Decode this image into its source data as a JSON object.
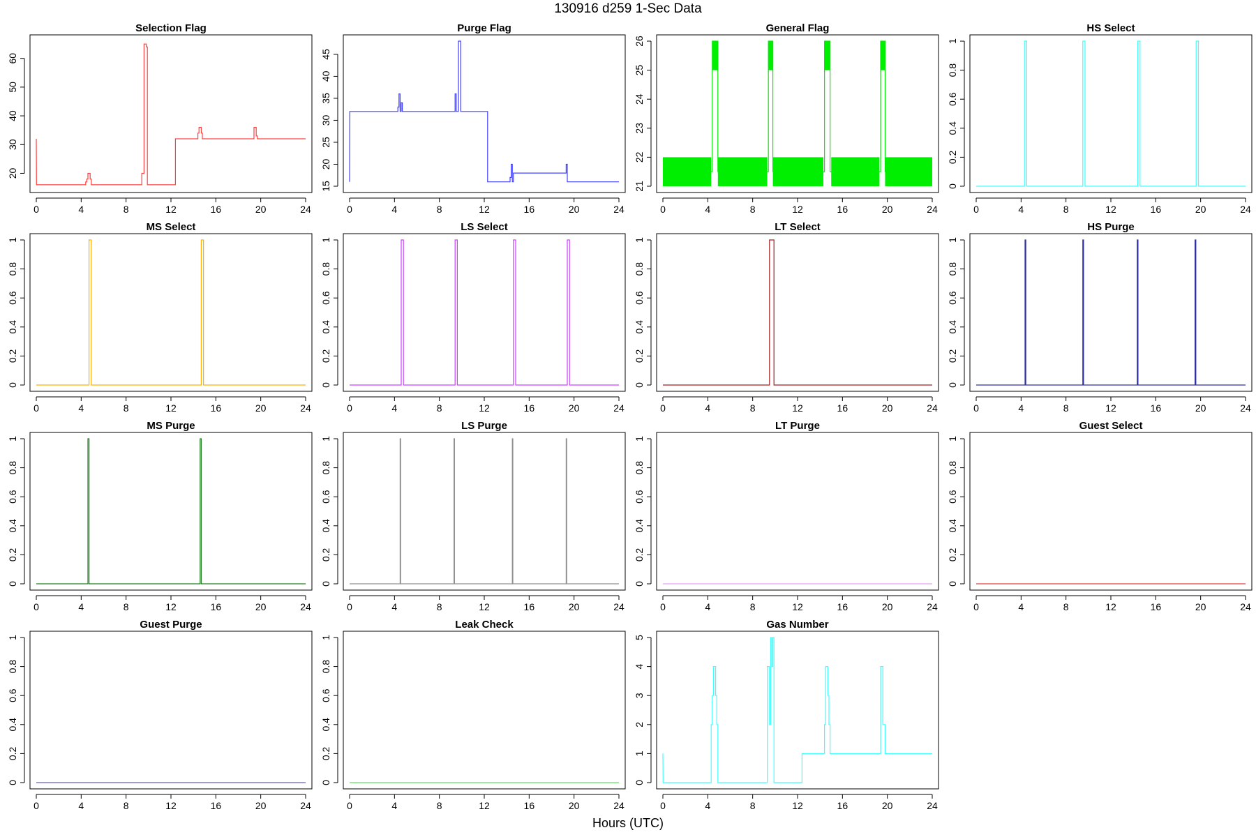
{
  "title": "130916   d259   1-Sec Data",
  "xlabel": "Hours (UTC)",
  "chart_data": [
    {
      "type": "line",
      "title": "Selection Flag",
      "color": "#ff4040",
      "xlim": [
        0,
        24
      ],
      "ylim": [
        15.5,
        66
      ],
      "xticks": [
        0,
        4,
        8,
        12,
        16,
        20,
        24
      ],
      "yticks": [
        20,
        30,
        40,
        50,
        60
      ],
      "x": [
        0,
        0,
        0.02,
        4.4,
        4.4,
        4.5,
        4.5,
        4.6,
        4.6,
        4.8,
        4.8,
        4.9,
        4.9,
        9.4,
        9.4,
        9.6,
        9.6,
        9.8,
        9.8,
        9.9,
        9.9,
        12.4,
        12.4,
        14.4,
        14.4,
        14.5,
        14.5,
        14.7,
        14.7,
        14.8,
        14.8,
        19.4,
        19.4,
        19.6,
        19.6,
        19.7,
        19.7,
        24
      ],
      "y": [
        32,
        32,
        16,
        16,
        17,
        17,
        18,
        18,
        20,
        20,
        18,
        18,
        16,
        16,
        20,
        20,
        65,
        65,
        64,
        64,
        16,
        16,
        32,
        32,
        34,
        34,
        36,
        36,
        34,
        34,
        32,
        32,
        36,
        36,
        33,
        33,
        32,
        32
      ]
    },
    {
      "type": "line",
      "title": "Purge Flag",
      "color": "#4040ff",
      "xlim": [
        0,
        24
      ],
      "ylim": [
        15,
        48
      ],
      "xticks": [
        0,
        4,
        8,
        12,
        16,
        20,
        24
      ],
      "yticks": [
        15,
        20,
        25,
        30,
        35,
        40,
        45
      ],
      "x": [
        0,
        0,
        0.02,
        4.3,
        4.3,
        4.4,
        4.4,
        4.5,
        4.5,
        4.6,
        4.6,
        4.7,
        4.7,
        9.4,
        9.4,
        9.5,
        9.5,
        9.7,
        9.7,
        9.9,
        9.9,
        12.3,
        12.3,
        14.3,
        14.3,
        14.4,
        14.4,
        14.5,
        14.5,
        14.6,
        14.6,
        19.3,
        19.3,
        19.4,
        19.4,
        24
      ],
      "y": [
        16,
        16,
        32,
        32,
        33,
        33,
        36,
        36,
        32,
        32,
        34,
        34,
        32,
        32,
        36,
        36,
        32,
        32,
        48,
        48,
        32,
        32,
        16,
        16,
        17,
        17,
        20,
        20,
        16,
        16,
        18,
        18,
        20,
        20,
        16,
        16
      ]
    },
    {
      "type": "line",
      "title": "General Flag",
      "color": "#00ee00",
      "xlim": [
        0,
        24
      ],
      "ylim": [
        21,
        26
      ],
      "xticks": [
        0,
        4,
        8,
        12,
        16,
        20,
        24
      ],
      "yticks": [
        21,
        22,
        23,
        24,
        25,
        26
      ],
      "x": [
        0,
        4.4,
        4.4,
        4.9,
        4.9,
        9.4,
        9.4,
        9.8,
        9.8,
        14.4,
        14.4,
        14.9,
        14.9,
        19.4,
        19.4,
        19.8,
        19.8,
        24
      ],
      "y": [
        21.5,
        21.5,
        26,
        26,
        21.5,
        21.5,
        26,
        26,
        21.5,
        21.5,
        26,
        26,
        21.5,
        21.5,
        26,
        26,
        21.5,
        21.5
      ],
      "bands": [
        [
          0,
          4.3,
          21,
          22
        ],
        [
          4.9,
          9.3,
          21,
          22
        ],
        [
          9.8,
          14.3,
          21,
          22
        ],
        [
          15.0,
          19.3,
          21,
          22
        ],
        [
          19.8,
          24,
          21,
          22
        ],
        [
          4.4,
          4.9,
          25,
          26
        ],
        [
          9.4,
          9.8,
          25,
          26
        ],
        [
          14.4,
          14.9,
          25,
          26
        ],
        [
          19.4,
          19.8,
          25,
          26
        ]
      ]
    },
    {
      "type": "line",
      "title": "HS Select",
      "color": "#40ffff",
      "xlim": [
        0,
        24
      ],
      "ylim": [
        0,
        1
      ],
      "xticks": [
        0,
        4,
        8,
        12,
        16,
        20,
        24
      ],
      "yticks": [
        0,
        0.2,
        0.4,
        0.6,
        0.8,
        1
      ],
      "x": [
        0,
        4.3,
        4.3,
        4.5,
        4.5,
        9.5,
        9.5,
        9.7,
        9.7,
        14.4,
        14.4,
        14.6,
        14.6,
        19.6,
        19.6,
        19.8,
        19.8,
        24
      ],
      "y": [
        0,
        0,
        1,
        1,
        0,
        0,
        1,
        1,
        0,
        0,
        1,
        1,
        0,
        0,
        1,
        1,
        0,
        0
      ]
    },
    {
      "type": "line",
      "title": "MS Select",
      "color": "#ffb000",
      "xlim": [
        0,
        24
      ],
      "ylim": [
        0,
        1
      ],
      "xticks": [
        0,
        4,
        8,
        12,
        16,
        20,
        24
      ],
      "yticks": [
        0,
        0.2,
        0.4,
        0.6,
        0.8,
        1
      ],
      "x": [
        0,
        4.7,
        4.7,
        4.9,
        4.9,
        14.7,
        14.7,
        14.9,
        14.9,
        24
      ],
      "y": [
        0,
        0,
        1,
        1,
        0,
        0,
        1,
        1,
        0,
        0
      ]
    },
    {
      "type": "line",
      "title": "LS Select",
      "color": "#cc40ff",
      "xlim": [
        0,
        24
      ],
      "ylim": [
        0,
        1
      ],
      "xticks": [
        0,
        4,
        8,
        12,
        16,
        20,
        24
      ],
      "yticks": [
        0,
        0.2,
        0.4,
        0.6,
        0.8,
        1
      ],
      "x": [
        0,
        4.6,
        4.6,
        4.8,
        4.8,
        9.4,
        9.4,
        9.6,
        9.6,
        14.6,
        14.6,
        14.8,
        14.8,
        19.4,
        19.4,
        19.6,
        19.6,
        24
      ],
      "y": [
        0,
        0,
        1,
        1,
        0,
        0,
        1,
        1,
        0,
        0,
        1,
        1,
        0,
        0,
        1,
        1,
        0,
        0
      ]
    },
    {
      "type": "line",
      "title": "LT Select",
      "color": "#a02020",
      "xlim": [
        0,
        24
      ],
      "ylim": [
        0,
        1
      ],
      "xticks": [
        0,
        4,
        8,
        12,
        16,
        20,
        24
      ],
      "yticks": [
        0,
        0.2,
        0.4,
        0.6,
        0.8,
        1
      ],
      "x": [
        0,
        9.5,
        9.5,
        9.9,
        9.9,
        24
      ],
      "y": [
        0,
        0,
        1,
        1,
        0,
        0
      ]
    },
    {
      "type": "line",
      "title": "HS Purge",
      "color": "#3030a0",
      "xlim": [
        0,
        24
      ],
      "ylim": [
        0,
        1
      ],
      "xticks": [
        0,
        4,
        8,
        12,
        16,
        20,
        24
      ],
      "yticks": [
        0,
        0.2,
        0.4,
        0.6,
        0.8,
        1
      ],
      "x": [
        0,
        4.35,
        4.35,
        4.42,
        4.42,
        9.5,
        9.5,
        9.57,
        9.57,
        14.35,
        14.35,
        14.42,
        14.42,
        19.5,
        19.5,
        19.57,
        19.57,
        24
      ],
      "y": [
        0,
        0,
        1,
        1,
        0,
        0,
        1,
        1,
        0,
        0,
        1,
        1,
        0,
        0,
        1,
        1,
        0,
        0
      ]
    },
    {
      "type": "line",
      "title": "MS Purge",
      "color": "#208020",
      "xlim": [
        0,
        24
      ],
      "ylim": [
        0,
        1
      ],
      "xticks": [
        0,
        4,
        8,
        12,
        16,
        20,
        24
      ],
      "yticks": [
        0,
        0.2,
        0.4,
        0.6,
        0.8,
        1
      ],
      "x": [
        0,
        4.6,
        4.6,
        4.7,
        4.7,
        14.6,
        14.6,
        14.7,
        14.7,
        24
      ],
      "y": [
        0,
        0,
        1,
        1,
        0,
        0,
        1,
        1,
        0,
        0
      ]
    },
    {
      "type": "line",
      "title": "LS Purge",
      "color": "#909090",
      "xlim": [
        0,
        24
      ],
      "ylim": [
        0,
        1
      ],
      "xticks": [
        0,
        4,
        8,
        12,
        16,
        20,
        24
      ],
      "yticks": [
        0,
        0.2,
        0.4,
        0.6,
        0.8,
        1
      ],
      "x": [
        0,
        4.5,
        4.5,
        4.55,
        4.55,
        9.3,
        9.3,
        9.35,
        9.35,
        14.5,
        14.5,
        14.55,
        14.55,
        19.3,
        19.3,
        19.35,
        19.35,
        24
      ],
      "y": [
        0,
        0,
        1,
        1,
        0,
        0,
        1,
        1,
        0,
        0,
        1,
        1,
        0,
        0,
        1,
        1,
        0,
        0
      ]
    },
    {
      "type": "line",
      "title": "LT Purge",
      "color": "#e0a0f0",
      "xlim": [
        0,
        24
      ],
      "ylim": [
        0,
        1
      ],
      "xticks": [
        0,
        4,
        8,
        12,
        16,
        20,
        24
      ],
      "yticks": [
        0,
        0.2,
        0.4,
        0.6,
        0.8,
        1
      ],
      "x": [
        0,
        24
      ],
      "y": [
        0,
        0
      ]
    },
    {
      "type": "line",
      "title": "Guest Select",
      "color": "#e04040",
      "xlim": [
        0,
        24
      ],
      "ylim": [
        0,
        1
      ],
      "xticks": [
        0,
        4,
        8,
        12,
        16,
        20,
        24
      ],
      "yticks": [
        0,
        0.2,
        0.4,
        0.6,
        0.8,
        1
      ],
      "x": [
        0,
        24
      ],
      "y": [
        0,
        0
      ]
    },
    {
      "type": "line",
      "title": "Guest Purge",
      "color": "#6060c0",
      "xlim": [
        0,
        24
      ],
      "ylim": [
        0,
        1
      ],
      "xticks": [
        0,
        4,
        8,
        12,
        16,
        20,
        24
      ],
      "yticks": [
        0,
        0.2,
        0.4,
        0.6,
        0.8,
        1
      ],
      "x": [
        0,
        24
      ],
      "y": [
        0,
        0
      ]
    },
    {
      "type": "line",
      "title": "Leak Check",
      "color": "#60e060",
      "xlim": [
        0,
        24
      ],
      "ylim": [
        0,
        1
      ],
      "xticks": [
        0,
        4,
        8,
        12,
        16,
        20,
        24
      ],
      "yticks": [
        0,
        0.2,
        0.4,
        0.6,
        0.8,
        1
      ],
      "x": [
        0,
        24
      ],
      "y": [
        0,
        0
      ]
    },
    {
      "type": "line",
      "title": "Gas Number",
      "color": "#40ffff",
      "xlim": [
        0,
        24
      ],
      "ylim": [
        0,
        5
      ],
      "xticks": [
        0,
        4,
        8,
        12,
        16,
        20,
        24
      ],
      "yticks": [
        0,
        1,
        2,
        3,
        4,
        5
      ],
      "x": [
        0,
        0,
        0.02,
        4.3,
        4.3,
        4.4,
        4.4,
        4.5,
        4.5,
        4.7,
        4.7,
        4.8,
        4.8,
        4.9,
        4.9,
        9.3,
        9.3,
        9.5,
        9.5,
        9.6,
        9.6,
        9.7,
        9.7,
        9.8,
        9.8,
        9.9,
        9.9,
        12.4,
        12.4,
        14.4,
        14.4,
        14.5,
        14.5,
        14.7,
        14.7,
        14.8,
        14.8,
        14.9,
        14.9,
        19.4,
        19.4,
        19.6,
        19.6,
        19.8,
        19.8,
        24
      ],
      "y": [
        1,
        1,
        0,
        0,
        2,
        2,
        3,
        3,
        4,
        4,
        3,
        3,
        2,
        2,
        0,
        0,
        4,
        4,
        2,
        2,
        5,
        5,
        4,
        4,
        5,
        5,
        0,
        0,
        1,
        1,
        2,
        2,
        4,
        4,
        3,
        3,
        2,
        2,
        1,
        1,
        4,
        4,
        2,
        2,
        1,
        1
      ]
    }
  ]
}
